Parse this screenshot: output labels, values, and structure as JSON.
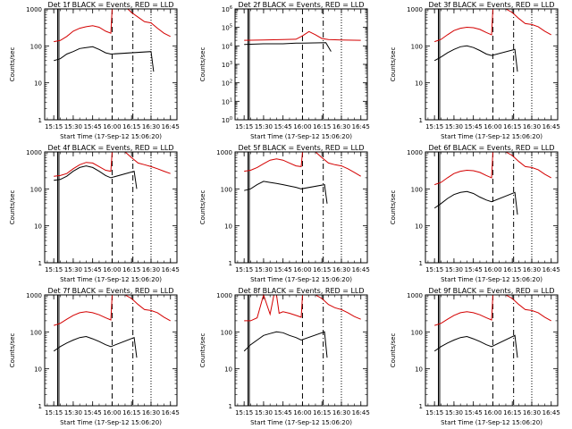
{
  "chart_data": [
    {
      "type": "line",
      "title": "Det 1f BLACK = Events, RED = LLD",
      "xlabel": "Start Time (17-Sep-12 15:06:20)",
      "ylabel": "Counts/sec",
      "yscale": "log",
      "ylim": [
        1,
        1000
      ],
      "xticks": [
        "15:15",
        "15:30",
        "15:45",
        "16:00",
        "16:15",
        "16:30",
        "16:45"
      ],
      "yticks": [
        "1",
        "10",
        "100",
        "1000"
      ],
      "markers": {
        "F_solid": [
          "15:18",
          "15:19"
        ],
        "S_dashed": [
          "16:00"
        ],
        "E_dashdot": [
          "16:16"
        ],
        "dotted": [
          "16:30"
        ]
      },
      "series": [
        {
          "color": "#d40000",
          "x": [
            "15:15",
            "15:20",
            "15:25",
            "15:30",
            "15:35",
            "15:40",
            "15:45",
            "15:50",
            "15:55",
            "15:59",
            "16:00",
            "16:05",
            "16:10",
            "16:12",
            "16:15",
            "16:20",
            "16:25",
            "16:30",
            "16:35",
            "16:40",
            "16:45"
          ],
          "values": [
            130,
            140,
            180,
            250,
            300,
            330,
            350,
            320,
            250,
            220,
            1000,
            1000,
            1000,
            1000,
            800,
            600,
            450,
            420,
            300,
            220,
            180
          ]
        },
        {
          "color": "#000000",
          "x": [
            "15:15",
            "15:20",
            "15:25",
            "15:30",
            "15:35",
            "15:40",
            "15:45",
            "15:50",
            "15:55",
            "15:59",
            "16:30",
            "16:32"
          ],
          "values": [
            40,
            45,
            60,
            70,
            85,
            90,
            95,
            80,
            65,
            60,
            70,
            20
          ]
        }
      ]
    },
    {
      "type": "line",
      "title": "Det 2f BLACK = Events, RED = LLD",
      "xlabel": "Start Time (17-Sep-12 15:06:20)",
      "ylabel": "Counts/sec",
      "yscale": "log",
      "ylim": [
        1,
        1000000
      ],
      "xticks": [
        "15:15",
        "15:30",
        "15:45",
        "16:00",
        "16:15",
        "16:30",
        "16:45"
      ],
      "yticks": [
        "10^0",
        "10^1",
        "10^2",
        "10^3",
        "10^4",
        "10^5",
        "10^6"
      ],
      "markers": {
        "F_solid": [
          "15:18",
          "15:19"
        ],
        "S_dashed": [
          "16:00"
        ],
        "E_dashdot": [
          "16:16"
        ],
        "dotted": [
          "16:30"
        ]
      },
      "series": [
        {
          "color": "#d40000",
          "x": [
            "15:15",
            "15:30",
            "15:45",
            "15:55",
            "16:00",
            "16:05",
            "16:10",
            "16:15",
            "16:20",
            "16:30",
            "16:45"
          ],
          "values": [
            20000,
            21000,
            22000,
            23000,
            35000,
            60000,
            40000,
            25000,
            22000,
            21000,
            20000
          ]
        },
        {
          "color": "#000000",
          "x": [
            "15:15",
            "15:30",
            "15:45",
            "15:55",
            "16:00",
            "16:18",
            "16:22"
          ],
          "values": [
            12000,
            13000,
            13000,
            14000,
            14000,
            15000,
            5000
          ]
        }
      ]
    },
    {
      "type": "line",
      "title": "Det 3f BLACK = Events, RED = LLD",
      "xlabel": "Start Time (17-Sep-12 15:06:20)",
      "ylabel": "Counts/sec",
      "yscale": "log",
      "ylim": [
        1,
        1000
      ],
      "xticks": [
        "15:15",
        "15:30",
        "15:45",
        "16:00",
        "16:15",
        "16:30",
        "16:45"
      ],
      "yticks": [
        "1",
        "10",
        "100",
        "1000"
      ],
      "markers": {
        "F_solid": [
          "15:18",
          "15:19"
        ],
        "S_dashed": [
          "16:00"
        ],
        "E_dashdot": [
          "16:16"
        ],
        "dotted": [
          "16:30"
        ]
      },
      "series": [
        {
          "color": "#d40000",
          "x": [
            "15:15",
            "15:20",
            "15:25",
            "15:30",
            "15:35",
            "15:40",
            "15:45",
            "15:50",
            "15:55",
            "15:59",
            "16:00",
            "16:05",
            "16:10",
            "16:15",
            "16:20",
            "16:25",
            "16:30",
            "16:35",
            "16:40",
            "16:45"
          ],
          "values": [
            130,
            150,
            200,
            260,
            300,
            320,
            310,
            280,
            230,
            200,
            1000,
            1000,
            1000,
            800,
            550,
            400,
            380,
            330,
            250,
            200
          ]
        },
        {
          "color": "#000000",
          "x": [
            "15:15",
            "15:20",
            "15:25",
            "15:30",
            "15:35",
            "15:40",
            "15:45",
            "15:50",
            "15:55",
            "15:59",
            "16:17",
            "16:19"
          ],
          "values": [
            40,
            50,
            65,
            80,
            95,
            100,
            90,
            75,
            60,
            55,
            80,
            20
          ]
        }
      ]
    },
    {
      "type": "line",
      "title": "Det 4f BLACK = Events, RED = LLD",
      "xlabel": "Start Time (17-Sep-12 15:06:20)",
      "ylabel": "Counts/sec",
      "yscale": "log",
      "ylim": [
        1,
        1000
      ],
      "xticks": [
        "15:15",
        "15:30",
        "15:45",
        "16:00",
        "16:15",
        "16:30",
        "16:45"
      ],
      "yticks": [
        "1",
        "10",
        "100",
        "1000"
      ],
      "markers": {
        "F_solid": [
          "15:18",
          "15:19"
        ],
        "S_dashed": [
          "16:00"
        ],
        "E_dashdot": [
          "16:16"
        ],
        "dotted": [
          "16:30"
        ]
      },
      "series": [
        {
          "color": "#d40000",
          "x": [
            "15:15",
            "15:20",
            "15:25",
            "15:30",
            "15:35",
            "15:40",
            "15:45",
            "15:50",
            "15:55",
            "15:59",
            "16:00",
            "16:05",
            "16:10",
            "16:15",
            "16:20",
            "16:25",
            "16:30",
            "16:35",
            "16:40",
            "16:45"
          ],
          "values": [
            220,
            230,
            260,
            350,
            450,
            520,
            500,
            400,
            320,
            300,
            1000,
            1000,
            1000,
            700,
            500,
            450,
            400,
            350,
            300,
            260
          ]
        },
        {
          "color": "#000000",
          "x": [
            "15:15",
            "15:20",
            "15:25",
            "15:30",
            "15:35",
            "15:40",
            "15:45",
            "15:50",
            "15:55",
            "15:59",
            "16:17",
            "16:19"
          ],
          "values": [
            170,
            180,
            220,
            300,
            380,
            420,
            380,
            300,
            230,
            200,
            300,
            100
          ]
        }
      ]
    },
    {
      "type": "line",
      "title": "Det 5f BLACK = Events, RED = LLD",
      "xlabel": "Start Time (17-Sep-12 15:06:20)",
      "ylabel": "Counts/sec",
      "yscale": "log",
      "ylim": [
        1,
        1000
      ],
      "xticks": [
        "15:15",
        "15:30",
        "15:45",
        "16:00",
        "16:15",
        "16:30",
        "16:45"
      ],
      "yticks": [
        "1",
        "10",
        "100",
        "1000"
      ],
      "markers": {
        "F_solid": [
          "15:18",
          "15:19"
        ],
        "S_dashed": [
          "16:00"
        ],
        "E_dashdot": [
          "16:16"
        ],
        "dotted": [
          "16:30"
        ]
      },
      "series": [
        {
          "color": "#d40000",
          "x": [
            "15:15",
            "15:20",
            "15:25",
            "15:30",
            "15:35",
            "15:40",
            "15:45",
            "15:50",
            "15:55",
            "15:59",
            "16:00",
            "16:05",
            "16:10",
            "16:15",
            "16:20",
            "16:25",
            "16:30",
            "16:35",
            "16:40",
            "16:45"
          ],
          "values": [
            300,
            320,
            380,
            480,
            600,
            650,
            600,
            500,
            420,
            400,
            1000,
            1000,
            1000,
            700,
            500,
            450,
            420,
            350,
            280,
            220
          ]
        },
        {
          "color": "#000000",
          "x": [
            "15:15",
            "15:20",
            "15:25",
            "15:30",
            "15:35",
            "15:40",
            "15:45",
            "15:50",
            "15:55",
            "15:59",
            "16:17",
            "16:19"
          ],
          "values": [
            90,
            100,
            130,
            160,
            150,
            140,
            130,
            120,
            110,
            100,
            130,
            40
          ]
        }
      ]
    },
    {
      "type": "line",
      "title": "Det 6f BLACK = Events, RED = LLD",
      "xlabel": "Start Time (17-Sep-12 15:06:20)",
      "ylabel": "Counts/sec",
      "yscale": "log",
      "ylim": [
        1,
        1000
      ],
      "xticks": [
        "15:15",
        "15:30",
        "15:45",
        "16:00",
        "16:15",
        "16:30",
        "16:45"
      ],
      "yticks": [
        "1",
        "10",
        "100",
        "1000"
      ],
      "markers": {
        "F_solid": [
          "15:18",
          "15:19"
        ],
        "S_dashed": [
          "16:00"
        ],
        "E_dashdot": [
          "16:16"
        ],
        "dotted": [
          "16:30"
        ]
      },
      "series": [
        {
          "color": "#d40000",
          "x": [
            "15:15",
            "15:20",
            "15:25",
            "15:30",
            "15:35",
            "15:40",
            "15:45",
            "15:50",
            "15:55",
            "15:59",
            "16:00",
            "16:05",
            "16:10",
            "16:15",
            "16:20",
            "16:25",
            "16:30",
            "16:35",
            "16:40",
            "16:45"
          ],
          "values": [
            130,
            150,
            200,
            260,
            300,
            320,
            310,
            280,
            230,
            200,
            1000,
            1000,
            1000,
            800,
            550,
            400,
            380,
            330,
            250,
            200
          ]
        },
        {
          "color": "#000000",
          "x": [
            "15:15",
            "15:20",
            "15:25",
            "15:30",
            "15:35",
            "15:40",
            "15:45",
            "15:50",
            "15:55",
            "15:59",
            "16:17",
            "16:19"
          ],
          "values": [
            30,
            40,
            55,
            70,
            80,
            85,
            75,
            60,
            50,
            45,
            80,
            20
          ]
        }
      ]
    },
    {
      "type": "line",
      "title": "Det 7f BLACK = Events, RED = LLD",
      "xlabel": "Start Time (17-Sep-12 15:06:20)",
      "ylabel": "Counts/sec",
      "yscale": "log",
      "ylim": [
        1,
        1000
      ],
      "xticks": [
        "15:15",
        "15:30",
        "15:45",
        "16:00",
        "16:15",
        "16:30",
        "16:45"
      ],
      "yticks": [
        "1",
        "10",
        "100",
        "1000"
      ],
      "markers": {
        "F_solid": [
          "15:18",
          "15:19"
        ],
        "S_dashed": [
          "16:00"
        ],
        "E_dashdot": [
          "16:16"
        ],
        "dotted": [
          "16:30"
        ]
      },
      "series": [
        {
          "color": "#d40000",
          "x": [
            "15:15",
            "15:20",
            "15:25",
            "15:30",
            "15:35",
            "15:40",
            "15:45",
            "15:50",
            "15:55",
            "15:59",
            "16:00",
            "16:05",
            "16:10",
            "16:15",
            "16:20",
            "16:25",
            "16:30",
            "16:35",
            "16:40",
            "16:45"
          ],
          "values": [
            150,
            170,
            220,
            280,
            330,
            350,
            330,
            290,
            240,
            210,
            1000,
            1000,
            1000,
            800,
            550,
            400,
            380,
            330,
            250,
            200
          ]
        },
        {
          "color": "#000000",
          "x": [
            "15:15",
            "15:20",
            "15:25",
            "15:30",
            "15:35",
            "15:40",
            "15:45",
            "15:50",
            "15:55",
            "15:59",
            "16:17",
            "16:19"
          ],
          "values": [
            30,
            40,
            50,
            60,
            70,
            75,
            65,
            55,
            45,
            40,
            70,
            20
          ]
        }
      ]
    },
    {
      "type": "line",
      "title": "Det 8f BLACK = Events, RED = LLD",
      "xlabel": "Start Time (17-Sep-12 15:06:20)",
      "ylabel": "Counts/sec",
      "yscale": "log",
      "ylim": [
        1,
        1000
      ],
      "xticks": [
        "15:15",
        "15:30",
        "15:45",
        "16:00",
        "16:15",
        "16:30",
        "16:45"
      ],
      "yticks": [
        "1",
        "10",
        "100",
        "1000"
      ],
      "markers": {
        "F_solid": [
          "15:18",
          "15:19"
        ],
        "S_dashed": [
          "16:00"
        ],
        "E_dashdot": [
          "16:16"
        ],
        "dotted": [
          "16:30"
        ]
      },
      "series": [
        {
          "color": "#d40000",
          "x": [
            "15:15",
            "15:20",
            "15:25",
            "15:30",
            "15:35",
            "15:38",
            "15:40",
            "15:42",
            "15:45",
            "15:50",
            "15:55",
            "15:59",
            "16:00",
            "16:05",
            "16:10",
            "16:15",
            "16:20",
            "16:25",
            "16:30",
            "16:35",
            "16:40",
            "16:45"
          ],
          "values": [
            200,
            200,
            240,
            1000,
            300,
            1000,
            1000,
            320,
            350,
            320,
            280,
            250,
            1000,
            1000,
            1000,
            800,
            550,
            450,
            400,
            330,
            260,
            220
          ]
        },
        {
          "color": "#000000",
          "x": [
            "15:15",
            "15:20",
            "15:25",
            "15:30",
            "15:35",
            "15:40",
            "15:45",
            "15:50",
            "15:55",
            "15:59",
            "16:17",
            "16:19"
          ],
          "values": [
            30,
            45,
            60,
            80,
            90,
            100,
            95,
            80,
            70,
            60,
            100,
            20
          ]
        }
      ]
    },
    {
      "type": "line",
      "title": "Det 9f BLACK = Events, RED = LLD",
      "xlabel": "Start Time (17-Sep-12 15:06:20)",
      "ylabel": "Counts/sec",
      "yscale": "log",
      "ylim": [
        1,
        1000
      ],
      "xticks": [
        "15:15",
        "15:30",
        "15:45",
        "16:00",
        "16:15",
        "16:30",
        "16:45"
      ],
      "yticks": [
        "1",
        "10",
        "100",
        "1000"
      ],
      "markers": {
        "F_solid": [
          "15:18",
          "15:19"
        ],
        "S_dashed": [
          "16:00"
        ],
        "E_dashdot": [
          "16:16"
        ],
        "dotted": [
          "16:30"
        ]
      },
      "series": [
        {
          "color": "#d40000",
          "x": [
            "15:15",
            "15:20",
            "15:25",
            "15:30",
            "15:35",
            "15:40",
            "15:45",
            "15:50",
            "15:55",
            "15:59",
            "16:00",
            "16:05",
            "16:10",
            "16:15",
            "16:20",
            "16:25",
            "16:30",
            "16:35",
            "16:40",
            "16:45"
          ],
          "values": [
            150,
            170,
            220,
            280,
            330,
            350,
            330,
            290,
            240,
            210,
            1000,
            1000,
            1000,
            800,
            550,
            400,
            380,
            330,
            250,
            200
          ]
        },
        {
          "color": "#000000",
          "x": [
            "15:15",
            "15:20",
            "15:25",
            "15:30",
            "15:35",
            "15:40",
            "15:45",
            "15:50",
            "15:55",
            "15:59",
            "16:17",
            "16:19"
          ],
          "values": [
            30,
            40,
            50,
            60,
            70,
            75,
            65,
            55,
            45,
            40,
            80,
            20
          ]
        }
      ]
    }
  ]
}
